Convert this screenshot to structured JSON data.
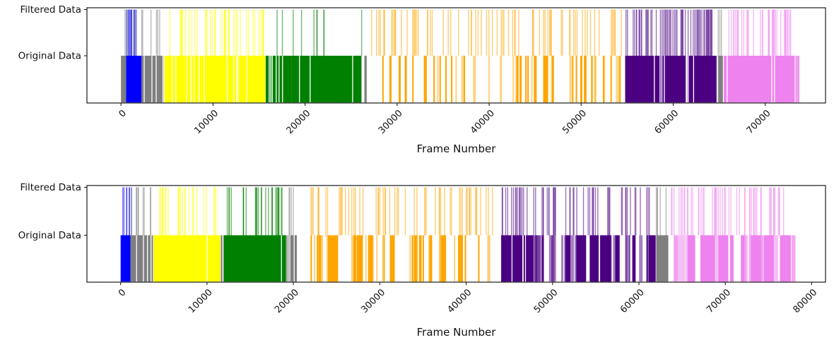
{
  "figure": {
    "background": "#ffffff",
    "spine_color": "#1a1a1a",
    "text_color": "#111111"
  },
  "colors": {
    "blue": "#0000ff",
    "gray": "#7f7f7f",
    "yellow": "#ffff00",
    "green": "#008000",
    "orange": "#ffa500",
    "indigo": "#4b0082",
    "violet": "#ee82ee"
  },
  "chart_data": [
    {
      "type": "eventplot",
      "title": "",
      "xlabel": "Frame Number",
      "row_labels": [
        "Filtered Data",
        "Original Data"
      ],
      "xticks": [
        0,
        10000,
        20000,
        30000,
        40000,
        50000,
        60000,
        70000
      ],
      "xlim": [
        -3700,
        76550
      ],
      "grid": false,
      "original": [
        {
          "color": "gray",
          "mode": "solid",
          "start": 0,
          "end": 550,
          "coverage": 1
        },
        {
          "color": "blue",
          "mode": "solid",
          "start": 550,
          "end": 2240,
          "coverage": 1
        },
        {
          "color": "gray",
          "mode": "solid",
          "start": 2240,
          "end": 4650,
          "coverage": 0.84
        },
        {
          "color": "yellow",
          "mode": "solid",
          "start": 4740,
          "end": 15680,
          "coverage": 0.9
        },
        {
          "color": "green",
          "mode": "solid",
          "start": 15720,
          "end": 18500,
          "coverage": 0.8
        },
        {
          "color": "green",
          "mode": "solid",
          "start": 18500,
          "end": 26130,
          "coverage": 0.96
        },
        {
          "color": "gray",
          "mode": "ticks",
          "start": 26230,
          "end": 26560,
          "count": 3,
          "width": 2.5,
          "opacity": 0.9
        },
        {
          "color": "orange",
          "mode": "bars",
          "start": 26700,
          "end": 54700,
          "coverage": 0.34
        },
        {
          "color": "indigo",
          "mode": "solid",
          "start": 54780,
          "end": 64700,
          "coverage": 0.93
        },
        {
          "color": "gray",
          "mode": "solid",
          "start": 64750,
          "end": 65400,
          "coverage": 0.8
        },
        {
          "color": "violet",
          "mode": "solid",
          "start": 65500,
          "end": 73200,
          "coverage": 0.96
        },
        {
          "color": "violet",
          "mode": "ticks",
          "start": 73250,
          "end": 73700,
          "count": 3,
          "width": 2,
          "opacity": 0.8
        }
      ],
      "filtered": [
        {
          "color": "blue",
          "mode": "ticks",
          "start": 500,
          "end": 2300,
          "count": 11
        },
        {
          "color": "gray",
          "mode": "ticks",
          "start": 300,
          "end": 4600,
          "count": 12
        },
        {
          "color": "yellow",
          "mode": "ticks",
          "start": 4800,
          "end": 15450,
          "count": 40
        },
        {
          "color": "green",
          "mode": "ticks",
          "start": 16450,
          "end": 22150,
          "count": 9
        },
        {
          "color": "green",
          "mode": "ticks",
          "start": 25900,
          "end": 26100,
          "count": 1
        },
        {
          "color": "orange",
          "mode": "ticks",
          "start": 26800,
          "end": 54500,
          "count": 76
        },
        {
          "color": "indigo",
          "mode": "ticks",
          "start": 54800,
          "end": 64500,
          "count": 62
        },
        {
          "color": "gray",
          "mode": "ticks",
          "start": 64800,
          "end": 65350,
          "count": 3
        },
        {
          "color": "violet",
          "mode": "ticks",
          "start": 65700,
          "end": 73000,
          "count": 36
        }
      ]
    },
    {
      "type": "eventplot",
      "title": "",
      "xlabel": "Frame Number",
      "row_labels": [
        "Filtered Data",
        "Original Data"
      ],
      "xticks": [
        0,
        10000,
        20000,
        30000,
        40000,
        50000,
        60000,
        70000,
        80000
      ],
      "xlim": [
        -3900,
        81600
      ],
      "grid": false,
      "original": [
        {
          "color": "blue",
          "mode": "solid",
          "start": 0,
          "end": 1150,
          "coverage": 1
        },
        {
          "color": "gray",
          "mode": "solid",
          "start": 1150,
          "end": 3750,
          "coverage": 0.85
        },
        {
          "color": "yellow",
          "mode": "solid",
          "start": 3820,
          "end": 11550,
          "coverage": 0.99
        },
        {
          "color": "gray",
          "mode": "solid",
          "start": 11600,
          "end": 11950,
          "coverage": 0.8
        },
        {
          "color": "green",
          "mode": "solid",
          "start": 11950,
          "end": 19150,
          "coverage": 0.99
        },
        {
          "color": "gray",
          "mode": "solid",
          "start": 19200,
          "end": 20400,
          "coverage": 0.75
        },
        {
          "color": "orange",
          "mode": "bars",
          "start": 20500,
          "end": 43360,
          "coverage": 0.45
        },
        {
          "color": "indigo",
          "mode": "bars",
          "start": 44050,
          "end": 62000,
          "coverage": 0.66,
          "chunky": true
        },
        {
          "color": "gray",
          "mode": "solid",
          "start": 62000,
          "end": 63400,
          "coverage": 0.97
        },
        {
          "color": "violet",
          "mode": "bars",
          "start": 63500,
          "end": 77600,
          "coverage": 0.66,
          "chunky": true
        },
        {
          "color": "violet",
          "mode": "ticks",
          "start": 77650,
          "end": 78100,
          "count": 3,
          "width": 2,
          "opacity": 0.7
        }
      ],
      "filtered": [
        {
          "color": "blue",
          "mode": "ticks",
          "start": 100,
          "end": 1250,
          "count": 7
        },
        {
          "color": "gray",
          "mode": "ticks",
          "start": 1150,
          "end": 3800,
          "count": 9
        },
        {
          "color": "yellow",
          "mode": "ticks",
          "start": 4300,
          "end": 11400,
          "count": 24
        },
        {
          "color": "green",
          "mode": "ticks",
          "start": 12100,
          "end": 19200,
          "count": 28
        },
        {
          "color": "gray",
          "mode": "ticks",
          "start": 19350,
          "end": 20350,
          "count": 4
        },
        {
          "color": "orange",
          "mode": "ticks",
          "start": 20700,
          "end": 43200,
          "count": 58
        },
        {
          "color": "indigo",
          "mode": "ticks",
          "start": 44100,
          "end": 61600,
          "count": 58
        },
        {
          "color": "gray",
          "mode": "ticks",
          "start": 61900,
          "end": 63200,
          "count": 5
        },
        {
          "color": "violet",
          "mode": "ticks",
          "start": 63500,
          "end": 77400,
          "count": 52
        }
      ]
    }
  ]
}
